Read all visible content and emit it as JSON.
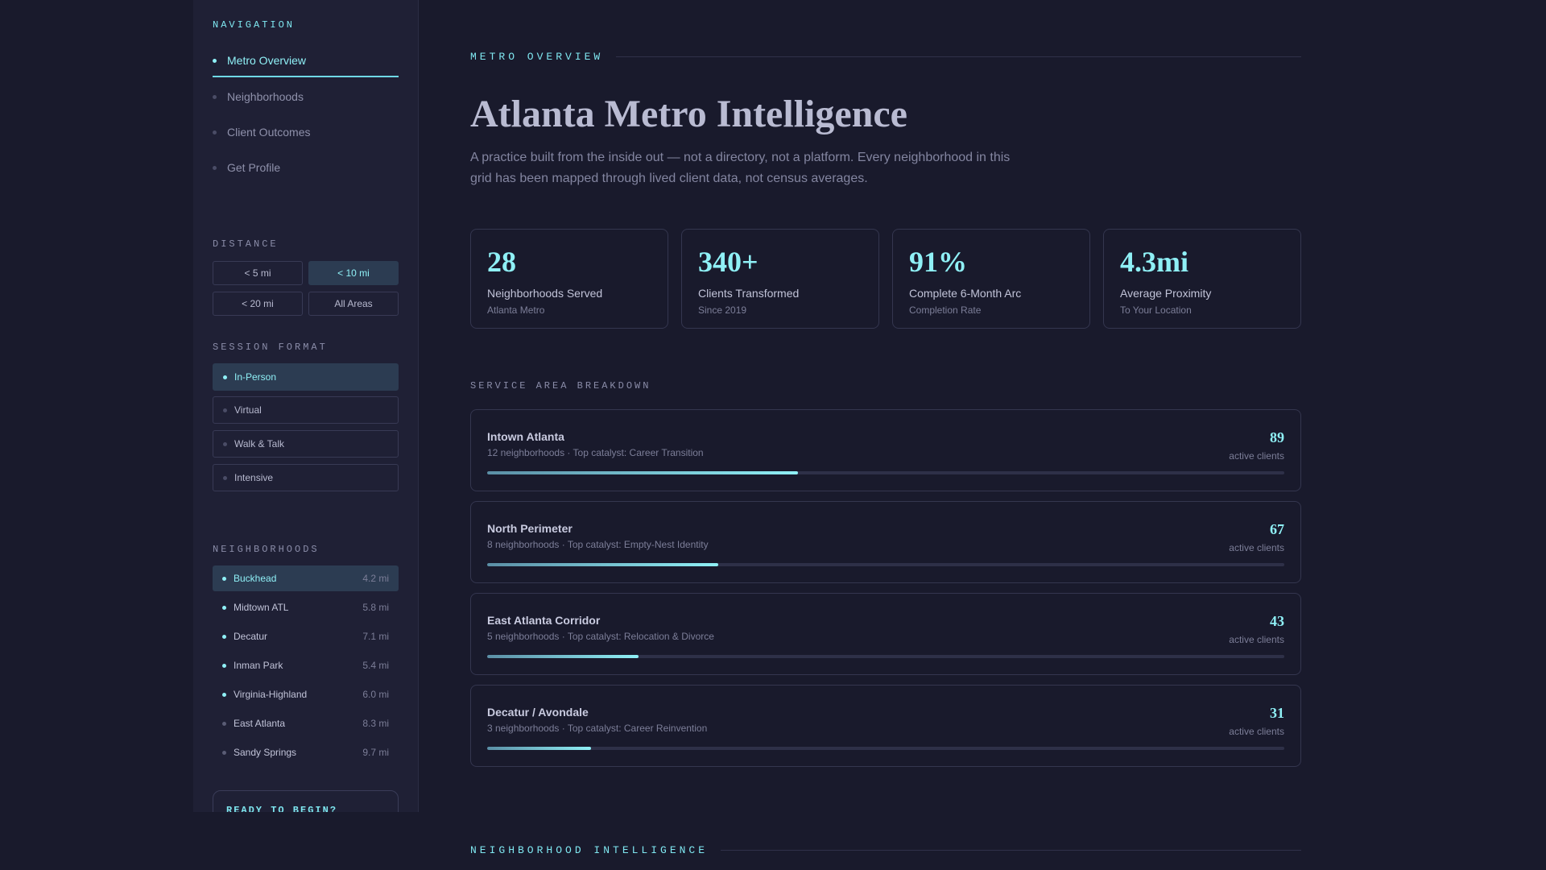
{
  "sidebar": {
    "nav_heading": "NAVIGATION",
    "nav_items": [
      {
        "label": "Metro Overview",
        "active": true
      },
      {
        "label": "Neighborhoods",
        "active": false
      },
      {
        "label": "Client Outcomes",
        "active": false
      },
      {
        "label": "Get Profile",
        "active": false
      }
    ],
    "distance_heading": "DISTANCE",
    "distance_options": [
      {
        "label": "< 5 mi",
        "active": false
      },
      {
        "label": "< 10 mi",
        "active": true
      },
      {
        "label": "< 20 mi",
        "active": false
      },
      {
        "label": "All Areas",
        "active": false
      }
    ],
    "format_heading": "SESSION FORMAT",
    "formats": [
      {
        "label": "In-Person",
        "active": true
      },
      {
        "label": "Virtual",
        "active": false
      },
      {
        "label": "Walk & Talk",
        "active": false
      },
      {
        "label": "Intensive",
        "active": false
      }
    ],
    "neighborhoods_heading": "NEIGHBORHOODS",
    "neighborhoods": [
      {
        "name": "Buckhead",
        "distance": "4.2 mi",
        "active": true,
        "in_range": true
      },
      {
        "name": "Midtown ATL",
        "distance": "5.8 mi",
        "active": false,
        "in_range": true
      },
      {
        "name": "Decatur",
        "distance": "7.1 mi",
        "active": false,
        "in_range": true
      },
      {
        "name": "Inman Park",
        "distance": "5.4 mi",
        "active": false,
        "in_range": true
      },
      {
        "name": "Virginia-Highland",
        "distance": "6.0 mi",
        "active": false,
        "in_range": true
      },
      {
        "name": "East Atlanta",
        "distance": "8.3 mi",
        "active": false,
        "in_range": false
      },
      {
        "name": "Sandy Springs",
        "distance": "9.7 mi",
        "active": false,
        "in_range": false
      }
    ],
    "cta_label": "READY TO BEGIN?"
  },
  "main": {
    "eyebrow": "METRO OVERVIEW",
    "title": "Atlanta Metro Intelligence",
    "subtitle": "A practice built from the inside out — not a directory, not a platform. Every neighborhood in this grid has been mapped through lived client data, not census averages.",
    "stats": [
      {
        "value": "28",
        "label": "Neighborhoods Served",
        "sub": "Atlanta Metro"
      },
      {
        "value": "340+",
        "label": "Clients Transformed",
        "sub": "Since 2019"
      },
      {
        "value": "91%",
        "label": "Complete 6-Month Arc",
        "sub": "Completion Rate"
      },
      {
        "value": "4.3mi",
        "label": "Average Proximity",
        "sub": "To Your Location"
      }
    ],
    "breakdown_heading": "SERVICE AREA BREAKDOWN",
    "areas": [
      {
        "name": "Intown Atlanta",
        "meta": "12 neighborhoods · Top catalyst: Career Transition",
        "count": "89",
        "unit": "active clients",
        "fill_fraction": 0.39
      },
      {
        "name": "North Perimeter",
        "meta": "8 neighborhoods · Top catalyst: Empty-Nest Identity",
        "count": "67",
        "unit": "active clients",
        "fill_fraction": 0.29
      },
      {
        "name": "East Atlanta Corridor",
        "meta": "5 neighborhoods · Top catalyst: Relocation & Divorce",
        "count": "43",
        "unit": "active clients",
        "fill_fraction": 0.19
      },
      {
        "name": "Decatur / Avondale",
        "meta": "3 neighborhoods · Top catalyst: Career Reinvention",
        "count": "31",
        "unit": "active clients",
        "fill_fraction": 0.13
      }
    ],
    "next_section": "NEIGHBORHOOD INTELLIGENCE"
  },
  "colors": {
    "background": "#191a2c",
    "sidebar": "#1f2035",
    "accent": "#8ff0f6",
    "active_fill": "#2c3c52"
  }
}
